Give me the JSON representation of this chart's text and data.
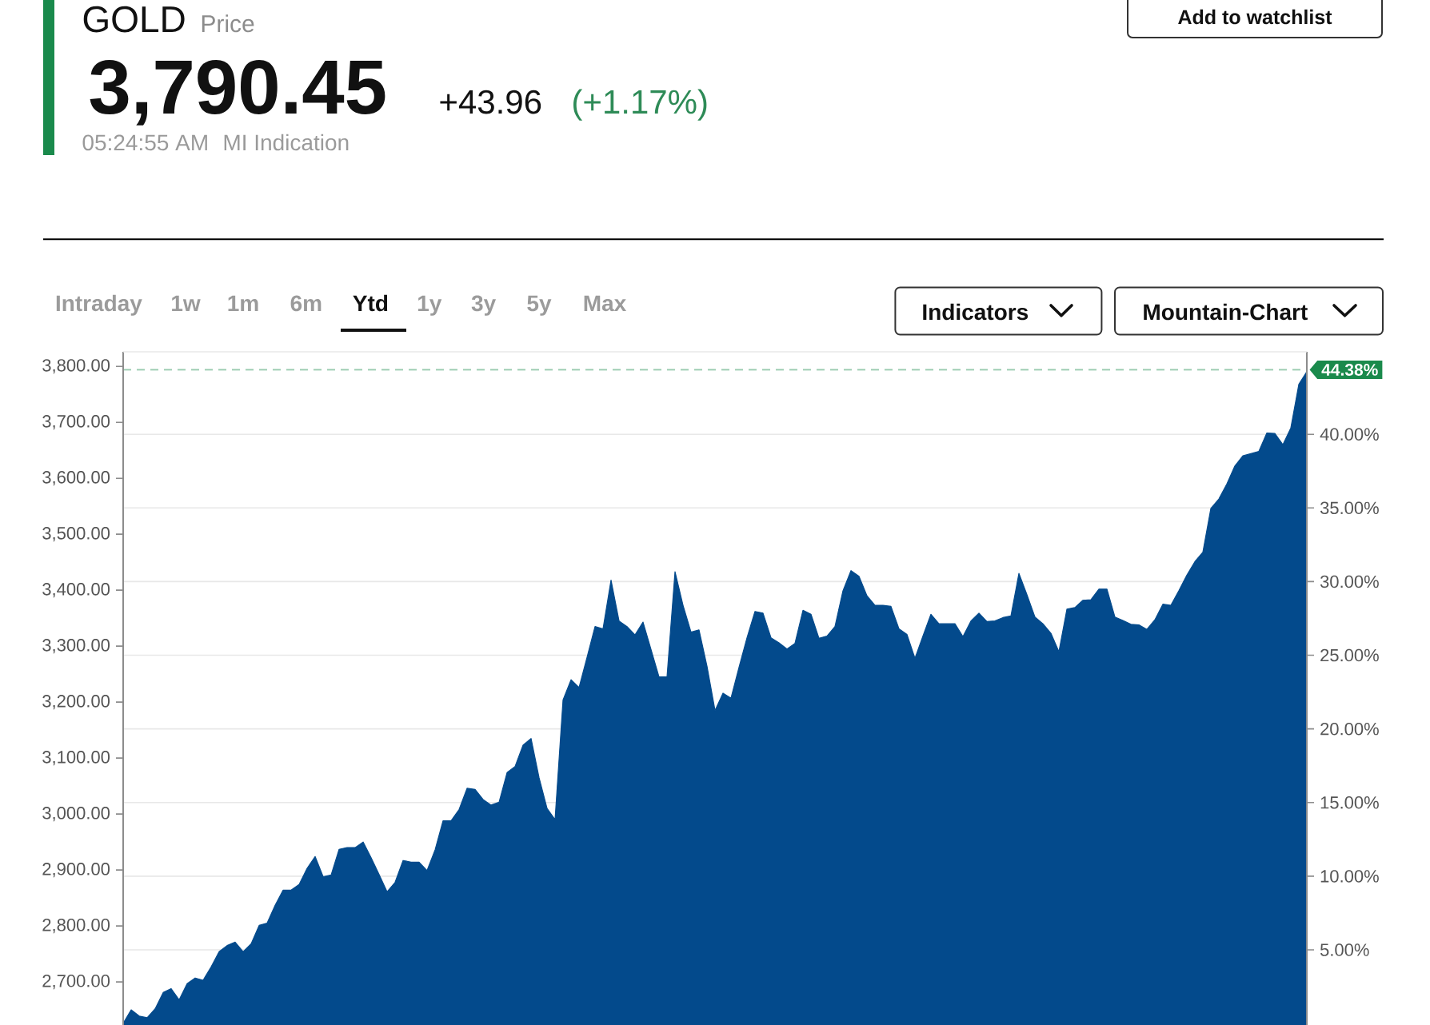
{
  "chart_data": {
    "type": "area",
    "title": "GOLD",
    "subtitle": "Price",
    "annotations": [
      "3,790.45",
      "+43.96",
      "(+1.17%)",
      "05:24:55 AM",
      "MI Indication",
      "Add to watchlist",
      "Intraday",
      "1w",
      "1m",
      "6m",
      "Ytd",
      "1y",
      "3y",
      "5y",
      "Max",
      "Indicators",
      "Mountain-Chart"
    ],
    "categories": [
      null,
      null,
      null,
      null,
      null,
      null,
      null,
      null,
      null,
      null,
      null,
      null,
      null,
      null,
      null,
      null,
      null,
      null,
      null,
      null,
      null,
      null,
      null,
      null,
      null,
      null,
      null,
      null,
      null,
      null,
      null,
      null,
      null,
      null,
      null,
      null,
      null,
      null,
      null,
      null,
      null,
      null,
      null,
      null,
      null,
      null,
      null,
      null,
      null,
      null,
      null,
      null,
      null,
      null,
      null,
      null,
      null,
      null,
      null,
      null,
      null,
      null,
      null,
      null,
      null,
      null,
      null,
      null,
      null,
      null,
      null,
      null,
      null,
      null,
      null,
      null,
      null,
      null,
      null,
      null,
      null,
      null,
      null,
      null,
      null,
      null,
      null,
      null,
      null,
      null,
      null,
      null,
      null,
      null,
      null,
      null,
      null,
      null,
      null,
      null,
      null,
      null,
      null,
      null,
      null,
      null,
      null,
      null,
      null,
      null,
      null,
      null,
      null,
      null,
      null,
      null,
      null,
      null,
      null,
      null,
      null,
      null,
      null,
      null,
      null,
      null,
      null,
      null,
      null,
      null,
      null,
      null,
      null,
      null,
      null,
      null,
      null,
      null,
      null,
      null,
      null,
      null,
      null,
      null,
      null,
      null,
      null,
      null,
      null
    ],
    "values": [
      2626,
      2650,
      2639,
      2636,
      2652,
      2681,
      2688,
      2668,
      2697,
      2707,
      2703,
      2727,
      2754,
      2765,
      2771,
      2754,
      2768,
      2801,
      2805,
      2837,
      2864,
      2864,
      2874,
      2903,
      2924,
      2888,
      2891,
      2937,
      2940,
      2940,
      2950,
      2922,
      2892,
      2861,
      2878,
      2917,
      2914,
      2914,
      2899,
      2936,
      2988,
      2988,
      3008,
      3046,
      3044,
      3026,
      3016,
      3021,
      3074,
      3085,
      3123,
      3135,
      3065,
      3010,
      2990,
      3204,
      3240,
      3226,
      3280,
      3335,
      3331,
      3418,
      3345,
      3335,
      3320,
      3343,
      3294,
      3245,
      3245,
      3433,
      3373,
      3325,
      3329,
      3264,
      3185,
      3216,
      3207,
      3262,
      3315,
      3362,
      3359,
      3315,
      3306,
      3295,
      3305,
      3364,
      3357,
      3314,
      3318,
      3335,
      3399,
      3435,
      3425,
      3390,
      3373,
      3373,
      3371,
      3331,
      3321,
      3278,
      3318,
      3357,
      3340,
      3340,
      3340,
      3317,
      3345,
      3359,
      3344,
      3345,
      3351,
      3354,
      3430,
      3392,
      3352,
      3340,
      3323,
      3290,
      3366,
      3369,
      3382,
      3383,
      3402,
      3402,
      3352,
      3346,
      3339,
      3338,
      3330,
      3347,
      3375,
      3373,
      3399,
      3427,
      3451,
      3468,
      3546,
      3563,
      3590,
      3622,
      3640,
      3644,
      3648,
      3681,
      3680,
      3660,
      3690,
      3768,
      3790.45
    ],
    "color": "#034a8c",
    "ylim": [
      2623,
      3826
    ],
    "yticks": [
      {
        "value": 2700,
        "label": "2,700.00"
      },
      {
        "value": 2800,
        "label": "2,800.00"
      },
      {
        "value": 2900,
        "label": "2,900.00"
      },
      {
        "value": 3000,
        "label": "3,000.00"
      },
      {
        "value": 3100,
        "label": "3,100.00"
      },
      {
        "value": 3200,
        "label": "3,200.00"
      },
      {
        "value": 3300,
        "label": "3,300.00"
      },
      {
        "value": 3400,
        "label": "3,400.00"
      },
      {
        "value": 3500,
        "label": "3,500.00"
      },
      {
        "value": 3600,
        "label": "3,600.00"
      },
      {
        "value": 3700,
        "label": "3,700.00"
      },
      {
        "value": 3800,
        "label": "3,800.00"
      }
    ],
    "y2lim": [
      -0.1,
      45.6
    ],
    "y2ticks": [
      {
        "value": 5,
        "label": "5.00%"
      },
      {
        "value": 10,
        "label": "10.00%"
      },
      {
        "value": 15,
        "label": "15.00%"
      },
      {
        "value": 20,
        "label": "20.00%"
      },
      {
        "value": 25,
        "label": "25.00%"
      },
      {
        "value": 30,
        "label": "30.00%"
      },
      {
        "value": 35,
        "label": "35.00%"
      },
      {
        "value": 40,
        "label": "40.00%"
      }
    ],
    "grid": "y",
    "ref_lines": [
      {
        "axis": "y2",
        "value": 44.38,
        "label": "44.38%",
        "color": "#99cbaf",
        "line_style": "dashed"
      }
    ]
  }
}
